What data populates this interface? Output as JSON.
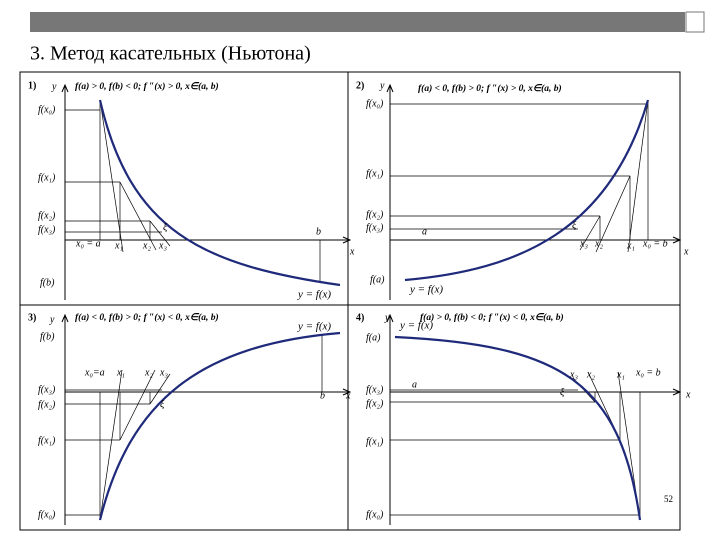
{
  "title": "3. Метод касательных (Ньютона)",
  "page_number": "52",
  "panels": [
    {
      "number": "1)",
      "condition": "f(a) > 0, f(b) < 0; f ″(x) > 0, x∈(a, b)",
      "y_axis": "y",
      "x_axis": "x",
      "y_labels": [
        "f(x₀)",
        "f(x₁)",
        "f(x₂)",
        "f(x₃)",
        "f(b)"
      ],
      "x_labels": [
        "x₀ = a",
        "x₁",
        "x₂",
        "x₃",
        "ξ",
        "b"
      ],
      "curve_label": "y = f(x)"
    },
    {
      "number": "2)",
      "condition": "f(a) < 0, f(b) > 0; f ″(x) > 0, x∈(a, b)",
      "y_axis": "y",
      "x_axis": "x",
      "y_labels": [
        "f(x₀)",
        "f(x₁)",
        "f(x₂)",
        "f(x₃)",
        "f(a)"
      ],
      "x_labels": [
        "a",
        "x₃",
        "x₂",
        "x₁",
        "x₀ = b",
        "ξ"
      ],
      "curve_label": "y = f(x)"
    },
    {
      "number": "3)",
      "condition": "f(a) < 0, f(b) > 0; f ″(x) < 0, x∈(a, b)",
      "y_axis": "y",
      "x_axis": "x",
      "y_labels": [
        "f(b)",
        "f(x₃)",
        "f(x₂)",
        "f(x₁)",
        "f(x₀)"
      ],
      "x_labels": [
        "x₀=a",
        "x₁",
        "x₂",
        "x₃",
        "ξ",
        "b"
      ],
      "curve_label": "y = f(x)"
    },
    {
      "number": "4)",
      "condition": "f(a) > 0, f(b) < 0; f ″(x) < 0, x∈(a, b)",
      "y_axis": "y",
      "x_axis": "x",
      "y_labels": [
        "f(a)",
        "f(x₃)",
        "f(x₂)",
        "f(x₁)",
        "f(x₀)"
      ],
      "x_labels": [
        "a",
        "x₃",
        "x₂",
        "x₁",
        "x₀ = b",
        "ξ"
      ],
      "curve_label": "y = f(x)"
    }
  ]
}
